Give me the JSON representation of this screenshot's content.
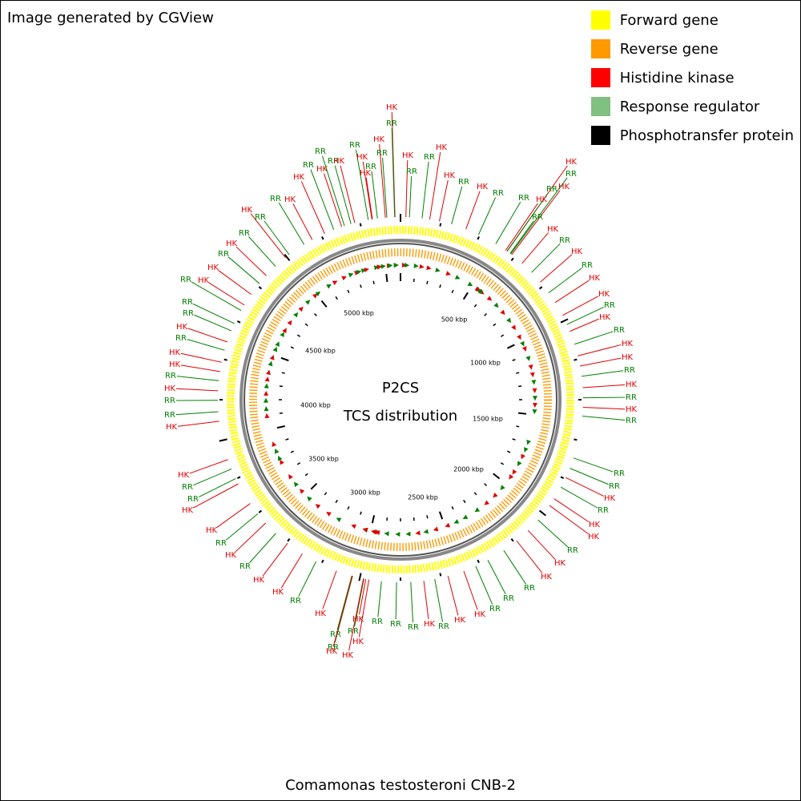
{
  "header": {
    "credit": "Image generated by CGView"
  },
  "legend": [
    {
      "label": "Forward gene",
      "color": "#ffff00"
    },
    {
      "label": "Reverse gene",
      "color": "#ff9900"
    },
    {
      "label": "Histidine kinase",
      "color": "#ff0000"
    },
    {
      "label": "Response regulator",
      "color": "#80c080"
    },
    {
      "label": "Phosphotransfer protein",
      "color": "#000000"
    }
  ],
  "map": {
    "center_title": "P2CS",
    "center_subtitle": "TCS distribution",
    "scale_labels": [
      "500 kbp",
      "1000 kbp",
      "1500 kbp",
      "2000 kbp",
      "2500 kbp",
      "3000 kbp",
      "3500 kbp",
      "4000 kbp",
      "4500 kbp",
      "5000 kbp"
    ],
    "label_colors": {
      "HK": "#e00000",
      "RR": "#008000"
    },
    "feature_labels": [
      "HK",
      "RR",
      "HK",
      "RR",
      "HK",
      "RR",
      "RR",
      "HK",
      "HK",
      "RR",
      "HK",
      "RR",
      "RR",
      "HK",
      "RR",
      "HK",
      "RR",
      "HK",
      "RR",
      "HK",
      "RR",
      "HK",
      "RR",
      "HK",
      "HK",
      "RR",
      "HK",
      "RR",
      "HK",
      "HK",
      "RR",
      "HK",
      "RR",
      "HK",
      "RR",
      "RR",
      "RR",
      "HK",
      "RR",
      "HK",
      "HK",
      "RR",
      "HK",
      "HK",
      "RR",
      "RR",
      "RR",
      "HK",
      "HK",
      "RR",
      "HK",
      "RR",
      "RR",
      "RR",
      "HK",
      "RR",
      "RR",
      "RR",
      "HK",
      "HK",
      "HK",
      "HK",
      "RR",
      "HK",
      "HK",
      "RR",
      "HK",
      "RR",
      "HK",
      "HK",
      "RR",
      "RR",
      "HK",
      "RR",
      "HK",
      "RR",
      "HK",
      "RR",
      "HK",
      "HK",
      "RR",
      "HK",
      "RR",
      "RR",
      "RR",
      "HK",
      "HK",
      "RR",
      "HK",
      "RR",
      "HK",
      "RR",
      "RR",
      "HK",
      "HK",
      "HK",
      "RR",
      "RR",
      "RR",
      "HK",
      "RR",
      "HK",
      "HK",
      "RR"
    ]
  },
  "footer": {
    "organism": "Comamonas testosteroni CNB-2"
  }
}
